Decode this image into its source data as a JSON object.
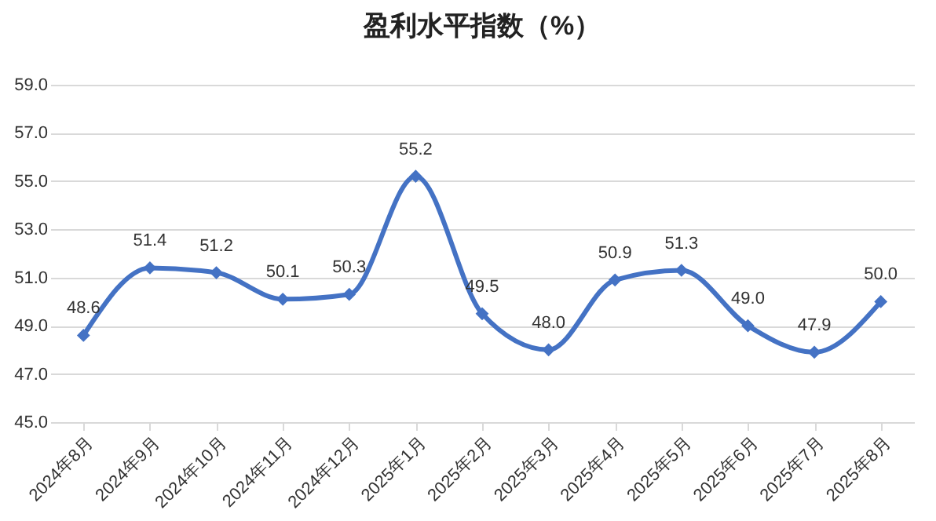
{
  "chart_data": {
    "type": "line",
    "title": "盈利水平指数（%）",
    "categories": [
      "2024年8月",
      "2024年9月",
      "2024年10月",
      "2024年11月",
      "2024年12月",
      "2025年1月",
      "2025年2月",
      "2025年3月",
      "2025年4月",
      "2025年5月",
      "2025年6月",
      "2025年7月",
      "2025年8月"
    ],
    "series": [
      {
        "color": "#4472c4",
        "values": [
          48.6,
          51.4,
          51.2,
          50.1,
          50.3,
          55.2,
          49.5,
          48.0,
          50.9,
          51.3,
          49.0,
          47.9,
          50.0
        ],
        "value_labels": [
          "48.6",
          "51.4",
          "51.2",
          "50.1",
          "50.3",
          "55.2",
          "49.5",
          "48.0",
          "50.9",
          "51.3",
          "49.0",
          "47.9",
          "50.0"
        ]
      }
    ],
    "ylim": [
      45,
      59
    ],
    "yticks": [
      {
        "value": 45,
        "label": "45.0"
      },
      {
        "value": 47,
        "label": "47.0"
      },
      {
        "value": 49,
        "label": "49.0"
      },
      {
        "value": 51,
        "label": "51.0"
      },
      {
        "value": 53,
        "label": "53.0"
      },
      {
        "value": 55,
        "label": "55.0"
      },
      {
        "value": 57,
        "label": "57.0"
      },
      {
        "value": 59,
        "label": "59.0"
      }
    ],
    "grid": "y",
    "legend": false,
    "marker": "diamond",
    "line_style": "solid"
  }
}
